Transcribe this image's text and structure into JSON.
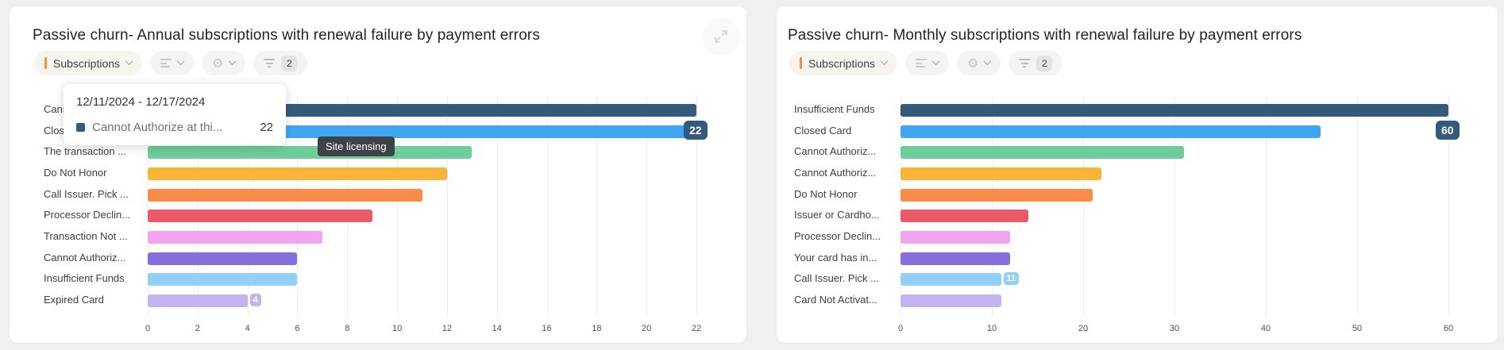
{
  "page": {
    "background": "#eef0f2"
  },
  "icons": {
    "gear_glyph": "⚙"
  },
  "panels": [
    {
      "title": "Passive churn- Annual subscriptions with renewal failure by payment errors",
      "toolbar": {
        "dataset_label": "Subscriptions",
        "filter_count": "2"
      },
      "chart_data": {
        "type": "bar",
        "orientation": "horizontal",
        "categories": [
          "Cannot Authoriz...",
          "Closed Card",
          "The transaction ...",
          "Do Not Honor",
          "Call Issuer. Pick ...",
          "Processor Declin...",
          "Transaction Not ...",
          "Cannot Authoriz...",
          "Insufficient Funds",
          "Expired Card"
        ],
        "values": [
          22,
          21.7,
          13,
          12,
          11,
          9,
          7,
          6,
          6,
          4
        ],
        "colors": [
          "#345b7e",
          "#41a6f0",
          "#6ecd99",
          "#fbb437",
          "#f98c48",
          "#e95b66",
          "#f1a4f0",
          "#8570db",
          "#92d0f8",
          "#c1b4f1"
        ],
        "xlim": [
          0,
          22
        ],
        "xticks": [
          0,
          2,
          4,
          6,
          8,
          10,
          12,
          14,
          16,
          18,
          20,
          22
        ],
        "grid": true
      },
      "badges": [
        {
          "text": "22",
          "row": 1,
          "value": 22,
          "style": "navy"
        },
        {
          "text": "4",
          "row": 9,
          "value": 4,
          "style": "small",
          "color": "#c1b4f1"
        }
      ],
      "hover_tooltip": {
        "date_range": "12/11/2024 - 12/17/2024",
        "series_label": "Cannot Authorize at thi...",
        "series_value": "22",
        "marker_color": "#345b7e"
      },
      "external_tooltip": "Site licensing"
    },
    {
      "title": "Passive churn- Monthly subscriptions with renewal failure by payment errors",
      "toolbar": {
        "dataset_label": "Subscriptions",
        "filter_count": "2"
      },
      "chart_data": {
        "type": "bar",
        "orientation": "horizontal",
        "categories": [
          "Insufficient Funds",
          "Closed Card",
          "Cannot Authoriz...",
          "Cannot Authoriz...",
          "Do Not Honor",
          "Issuer or Cardho...",
          "Processor Declin...",
          "Your card has in...",
          "Call Issuer. Pick ...",
          "Card Not Activat..."
        ],
        "values": [
          60,
          46,
          31,
          22,
          21,
          14,
          12,
          12,
          11,
          11
        ],
        "colors": [
          "#345b7e",
          "#41a6f0",
          "#6ecd99",
          "#fbb437",
          "#f98c48",
          "#e95b66",
          "#f1a4f0",
          "#8570db",
          "#92d0f8",
          "#c1b4f1"
        ],
        "xlim": [
          0,
          60
        ],
        "xticks": [
          0,
          10,
          20,
          30,
          40,
          50,
          60
        ],
        "grid": true
      },
      "badges": [
        {
          "text": "60",
          "row": 1,
          "value": 60,
          "style": "navy"
        },
        {
          "text": "11",
          "row": 8,
          "value": 11,
          "style": "small",
          "color": "#92d0f8"
        }
      ]
    }
  ]
}
